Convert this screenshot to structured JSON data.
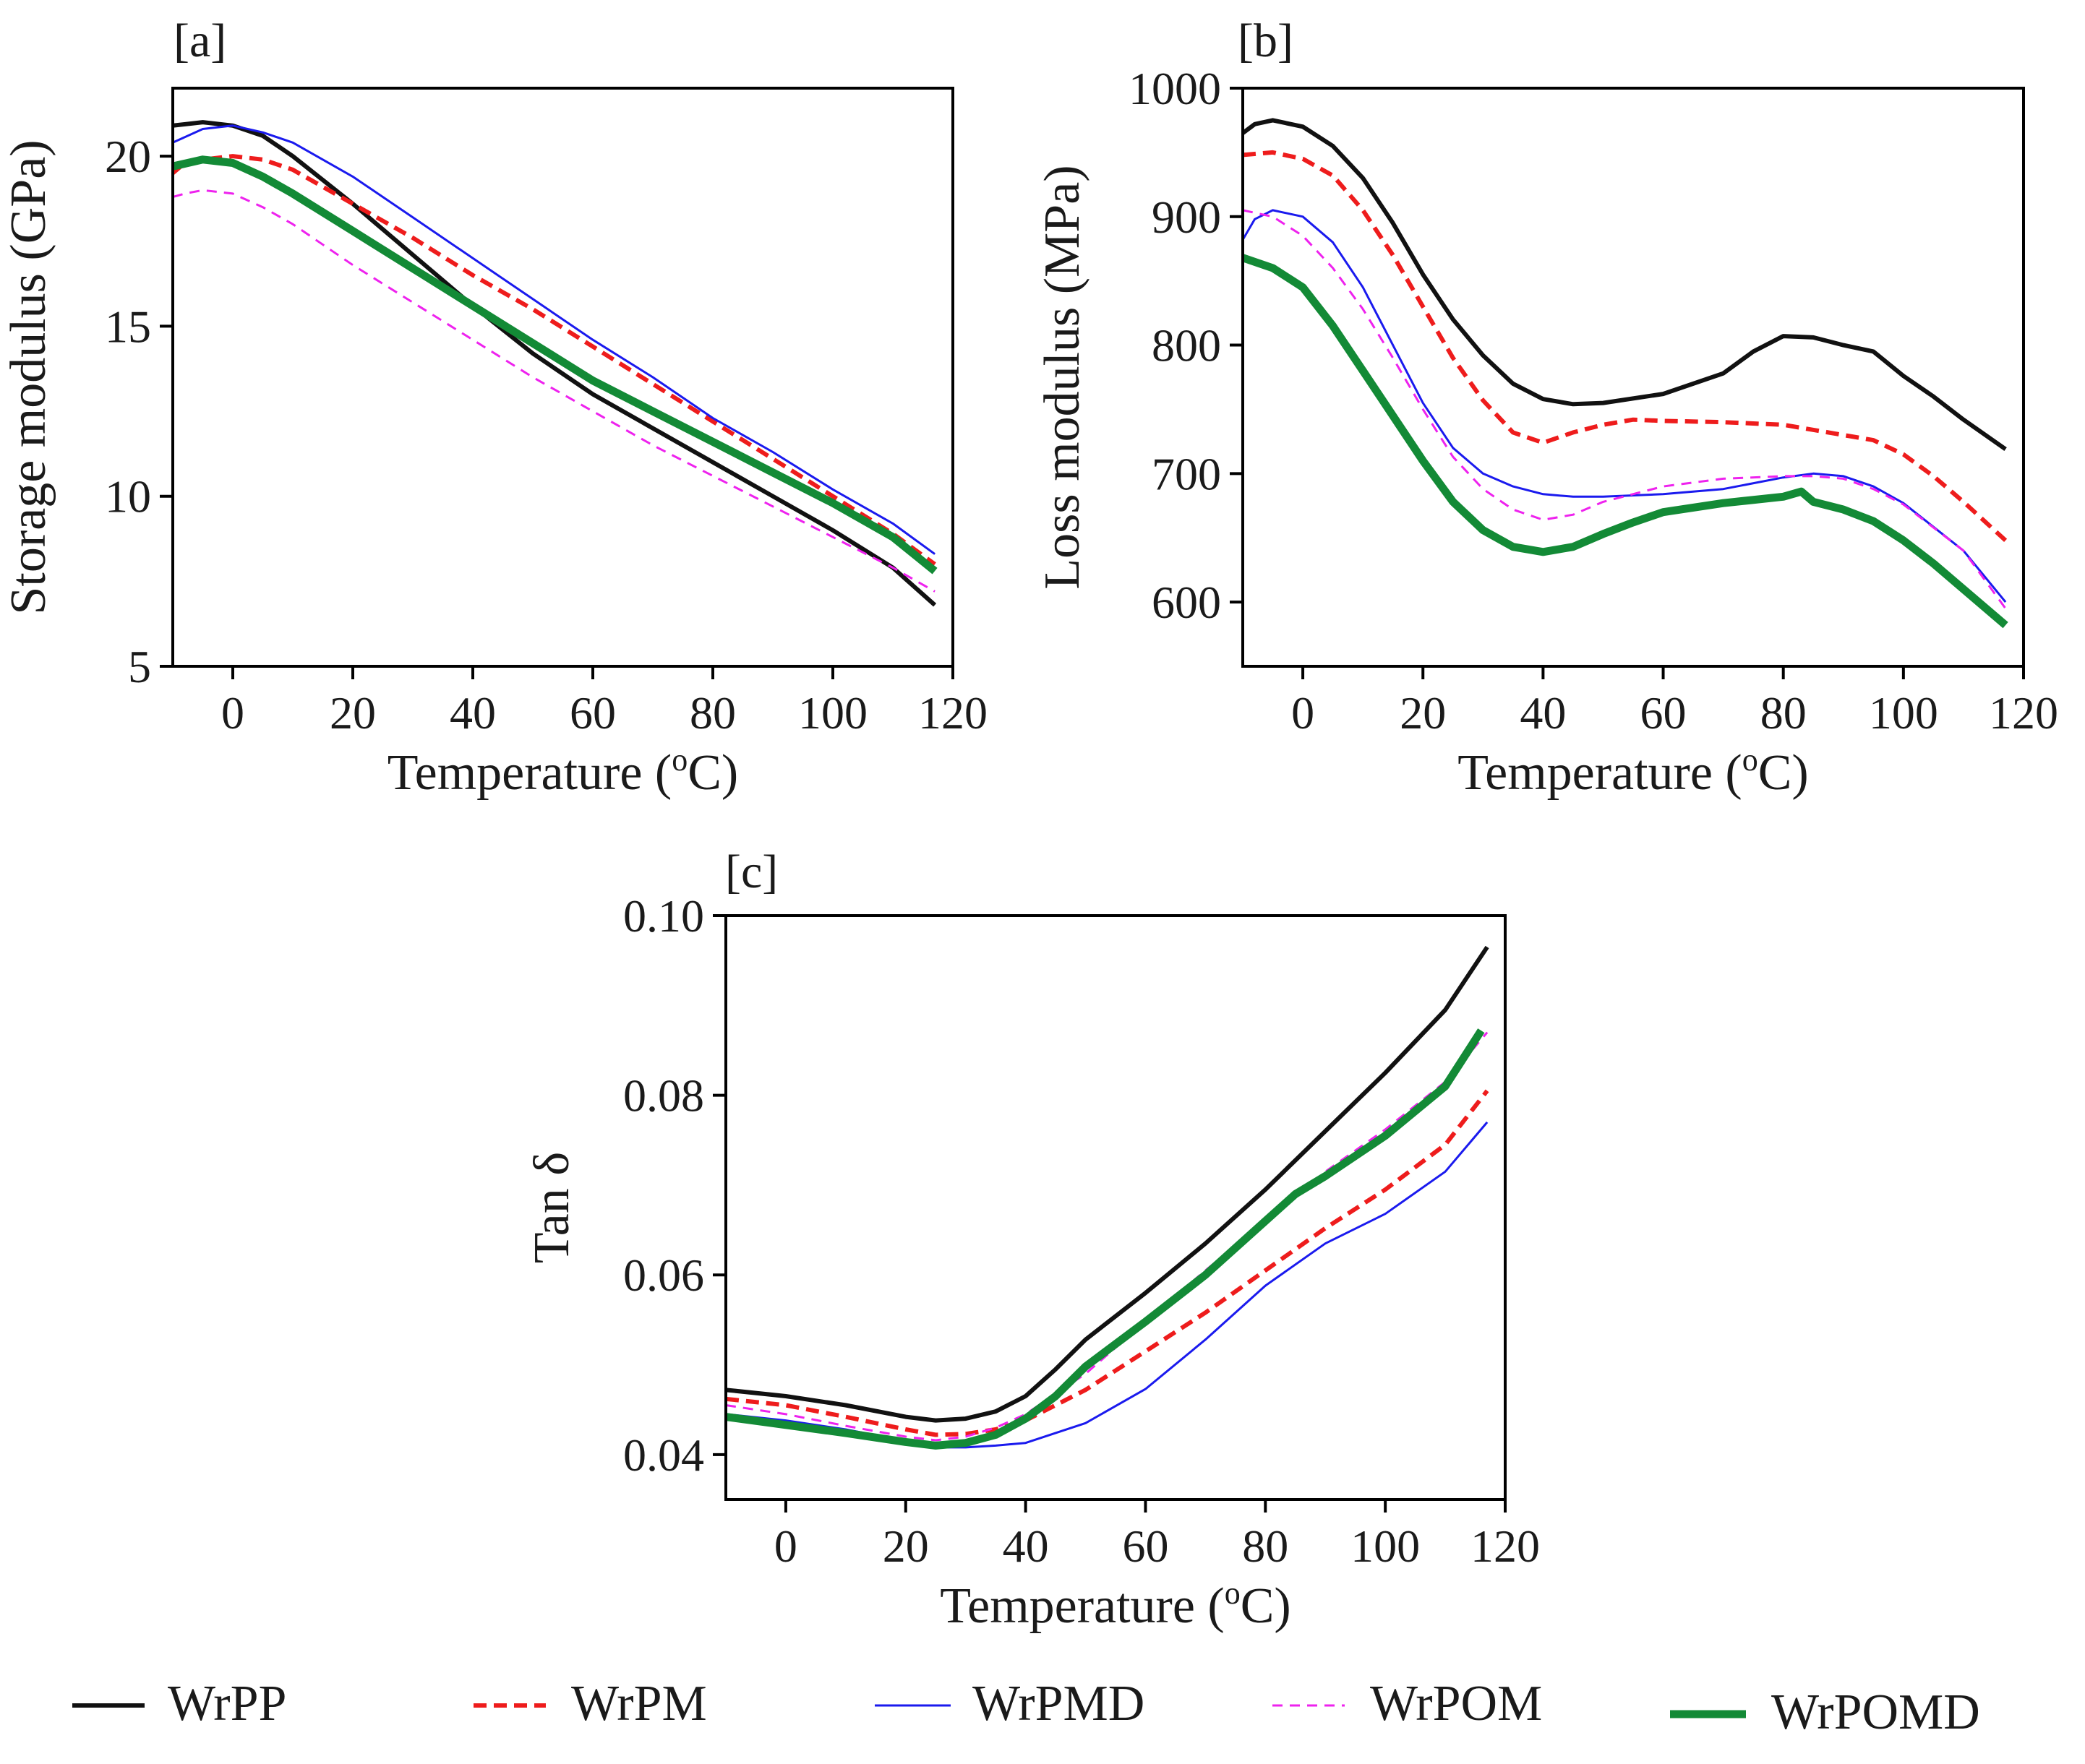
{
  "legend": {
    "items": [
      {
        "label": "WrPP",
        "color": "#111111",
        "dash": "",
        "width": 6
      },
      {
        "label": "WrPM",
        "color": "#ee1c1c",
        "dash": "18 10",
        "width": 6
      },
      {
        "label": "WrPMD",
        "color": "#1a1aee",
        "dash": "",
        "width": 3
      },
      {
        "label": "WrPOM",
        "color": "#ee22ee",
        "dash": "14 10",
        "width": 3
      },
      {
        "label": "WrPOMD",
        "color": "#138a36",
        "dash": "",
        "width": 11
      }
    ]
  },
  "chart_data": [
    {
      "type": "line",
      "panel": "[a]",
      "title": "",
      "xlabel": "Temperature (oC)",
      "xlabel_main": "Temperature (",
      "xlabel_sup": "o",
      "xlabel_end": "C)",
      "ylabel": "Storage modulus (GPa)",
      "xlim": [
        -10,
        120
      ],
      "ylim": [
        5,
        22
      ],
      "xticks": [
        0,
        20,
        40,
        60,
        80,
        100,
        120
      ],
      "xtick_labels": [
        "0",
        "20",
        "40",
        "60",
        "80",
        "100",
        "120"
      ],
      "yticks": [
        5,
        10,
        15,
        20
      ],
      "ytick_labels": [
        "5",
        "10",
        "15",
        "20"
      ],
      "series": [
        {
          "name": "WrPP",
          "x": [
            -10,
            -5,
            0,
            5,
            10,
            20,
            30,
            40,
            50,
            60,
            70,
            80,
            90,
            100,
            110,
            117
          ],
          "values": [
            20.9,
            21.0,
            20.9,
            20.6,
            20.0,
            18.6,
            17.1,
            15.6,
            14.2,
            13.0,
            12.0,
            11.0,
            10.0,
            9.0,
            7.9,
            6.8
          ]
        },
        {
          "name": "WrPM",
          "x": [
            -10,
            -8,
            -5,
            0,
            5,
            10,
            20,
            30,
            40,
            50,
            60,
            70,
            80,
            90,
            100,
            110,
            117
          ],
          "values": [
            19.5,
            19.8,
            19.9,
            20.0,
            19.9,
            19.6,
            18.6,
            17.6,
            16.5,
            15.5,
            14.4,
            13.3,
            12.2,
            11.1,
            10.0,
            8.9,
            8.0
          ]
        },
        {
          "name": "WrPMD",
          "x": [
            -10,
            -5,
            0,
            5,
            10,
            20,
            30,
            40,
            50,
            60,
            70,
            80,
            90,
            100,
            110,
            117
          ],
          "values": [
            20.4,
            20.8,
            20.9,
            20.7,
            20.4,
            19.4,
            18.2,
            17.0,
            15.8,
            14.6,
            13.5,
            12.3,
            11.3,
            10.2,
            9.2,
            8.3
          ]
        },
        {
          "name": "WrPOM",
          "x": [
            -10,
            -8,
            -5,
            0,
            5,
            10,
            20,
            30,
            40,
            50,
            60,
            70,
            80,
            90,
            100,
            110,
            117
          ],
          "values": [
            18.8,
            18.9,
            19.0,
            18.9,
            18.5,
            18.0,
            16.8,
            15.7,
            14.6,
            13.5,
            12.5,
            11.5,
            10.6,
            9.7,
            8.8,
            7.9,
            7.2
          ]
        },
        {
          "name": "WrPOMD",
          "x": [
            -10,
            -5,
            0,
            5,
            10,
            20,
            30,
            40,
            50,
            60,
            70,
            80,
            90,
            100,
            110,
            117
          ],
          "values": [
            19.7,
            19.9,
            19.8,
            19.4,
            18.9,
            17.8,
            16.7,
            15.6,
            14.5,
            13.4,
            12.5,
            11.6,
            10.7,
            9.8,
            8.8,
            7.8
          ]
        }
      ]
    },
    {
      "type": "line",
      "panel": "[b]",
      "title": "",
      "xlabel": "Temperature (oC)",
      "xlabel_main": "Temperature (",
      "xlabel_sup": "o",
      "xlabel_end": "C)",
      "ylabel": "Loss modulus (MPa)",
      "xlim": [
        -10,
        120
      ],
      "ylim": [
        550,
        1000
      ],
      "xticks": [
        0,
        20,
        40,
        60,
        80,
        100,
        120
      ],
      "xtick_labels": [
        "0",
        "20",
        "40",
        "60",
        "80",
        "100",
        "120"
      ],
      "yticks": [
        600,
        700,
        800,
        900,
        1000
      ],
      "ytick_labels": [
        "600",
        "700",
        "800",
        "900",
        "1000"
      ],
      "series": [
        {
          "name": "WrPP",
          "x": [
            -10,
            -8,
            -5,
            0,
            5,
            10,
            15,
            20,
            25,
            30,
            35,
            40,
            45,
            50,
            60,
            70,
            75,
            80,
            85,
            90,
            95,
            100,
            105,
            110,
            117
          ],
          "values": [
            965,
            972,
            975,
            970,
            955,
            930,
            895,
            855,
            820,
            792,
            770,
            758,
            754,
            755,
            762,
            778,
            795,
            807,
            806,
            800,
            795,
            776,
            760,
            742,
            719
          ]
        },
        {
          "name": "WrPM",
          "x": [
            -10,
            -5,
            0,
            5,
            10,
            15,
            20,
            25,
            30,
            35,
            40,
            45,
            50,
            55,
            60,
            70,
            80,
            90,
            95,
            100,
            105,
            110,
            117
          ],
          "values": [
            948,
            950,
            945,
            932,
            905,
            870,
            830,
            790,
            757,
            732,
            724,
            732,
            738,
            742,
            741,
            740,
            738,
            730,
            726,
            715,
            698,
            678,
            648
          ]
        },
        {
          "name": "WrPMD",
          "x": [
            -10,
            -8,
            -5,
            0,
            5,
            10,
            15,
            20,
            25,
            30,
            35,
            40,
            45,
            50,
            60,
            70,
            80,
            85,
            90,
            95,
            100,
            110,
            117
          ],
          "values": [
            882,
            898,
            905,
            900,
            880,
            845,
            800,
            755,
            720,
            700,
            690,
            684,
            682,
            682,
            684,
            688,
            697,
            700,
            698,
            690,
            677,
            640,
            600
          ]
        },
        {
          "name": "WrPOM",
          "x": [
            -10,
            -5,
            0,
            5,
            10,
            15,
            20,
            25,
            30,
            35,
            40,
            45,
            50,
            60,
            70,
            80,
            85,
            90,
            95,
            100,
            110,
            117
          ],
          "values": [
            905,
            900,
            885,
            860,
            828,
            790,
            750,
            713,
            688,
            672,
            664,
            668,
            678,
            690,
            696,
            698,
            698,
            696,
            688,
            676,
            640,
            595
          ]
        },
        {
          "name": "WrPOMD",
          "x": [
            -10,
            -5,
            0,
            5,
            10,
            15,
            20,
            25,
            30,
            35,
            40,
            45,
            50,
            55,
            60,
            70,
            80,
            83,
            85,
            90,
            95,
            100,
            105,
            110,
            117
          ],
          "values": [
            868,
            860,
            845,
            815,
            780,
            745,
            710,
            678,
            656,
            643,
            639,
            643,
            653,
            662,
            670,
            677,
            682,
            686,
            678,
            672,
            663,
            648,
            630,
            610,
            582
          ]
        }
      ]
    },
    {
      "type": "line",
      "panel": "[c]",
      "title": "",
      "xlabel": "Temperature (oC)",
      "xlabel_main": "Temperature (",
      "xlabel_sup": "o",
      "xlabel_end": "C)",
      "ylabel": "Tan δ",
      "xlim": [
        -10,
        120
      ],
      "ylim": [
        0.035,
        0.1
      ],
      "xticks": [
        0,
        20,
        40,
        60,
        80,
        100,
        120
      ],
      "xtick_labels": [
        "0",
        "20",
        "40",
        "60",
        "80",
        "100",
        "120"
      ],
      "yticks": [
        0.04,
        0.06,
        0.08,
        0.1
      ],
      "ytick_labels": [
        "0.04",
        "0.06",
        "0.08",
        "0.10"
      ],
      "series": [
        {
          "name": "WrPP",
          "x": [
            -10,
            0,
            10,
            20,
            25,
            30,
            35,
            40,
            45,
            50,
            60,
            70,
            80,
            90,
            100,
            110,
            117
          ],
          "values": [
            0.0472,
            0.0465,
            0.0455,
            0.0442,
            0.0438,
            0.044,
            0.0448,
            0.0465,
            0.0495,
            0.0528,
            0.058,
            0.0635,
            0.0695,
            0.076,
            0.0825,
            0.0895,
            0.0965
          ]
        },
        {
          "name": "WrPM",
          "x": [
            -10,
            0,
            10,
            20,
            25,
            30,
            35,
            40,
            50,
            60,
            70,
            80,
            90,
            100,
            110,
            117
          ],
          "values": [
            0.0462,
            0.0455,
            0.0442,
            0.0428,
            0.0422,
            0.0423,
            0.0428,
            0.0438,
            0.0472,
            0.0515,
            0.0558,
            0.0605,
            0.0652,
            0.0695,
            0.0745,
            0.0805
          ]
        },
        {
          "name": "WrPMD",
          "x": [
            -10,
            0,
            10,
            20,
            25,
            30,
            35,
            40,
            50,
            60,
            70,
            80,
            90,
            100,
            110,
            117
          ],
          "values": [
            0.0445,
            0.0438,
            0.0428,
            0.0415,
            0.0408,
            0.0408,
            0.041,
            0.0413,
            0.0435,
            0.0473,
            0.0528,
            0.0588,
            0.0635,
            0.0668,
            0.0715,
            0.077
          ]
        },
        {
          "name": "WrPOM",
          "x": [
            -10,
            0,
            10,
            20,
            25,
            30,
            35,
            40,
            50,
            60,
            70,
            80,
            90,
            100,
            110,
            117
          ],
          "values": [
            0.0455,
            0.0445,
            0.0432,
            0.042,
            0.0416,
            0.042,
            0.043,
            0.0445,
            0.049,
            0.0548,
            0.0605,
            0.066,
            0.0715,
            0.0762,
            0.0815,
            0.087
          ]
        },
        {
          "name": "WrPOMD",
          "x": [
            -10,
            0,
            10,
            20,
            25,
            30,
            35,
            40,
            45,
            50,
            60,
            70,
            80,
            85,
            90,
            100,
            110,
            116
          ],
          "values": [
            0.0442,
            0.0433,
            0.0424,
            0.0414,
            0.041,
            0.0413,
            0.0422,
            0.044,
            0.0465,
            0.0498,
            0.0548,
            0.06,
            0.066,
            0.069,
            0.071,
            0.0755,
            0.081,
            0.0872
          ]
        }
      ]
    }
  ]
}
